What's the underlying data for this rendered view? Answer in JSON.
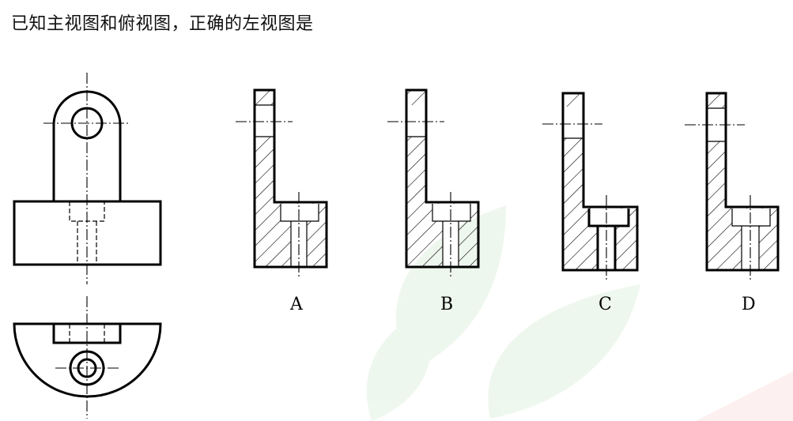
{
  "question": {
    "text": "已知主视图和俯视图，正确的左视图是"
  },
  "options": [
    {
      "label": "A"
    },
    {
      "label": "B"
    },
    {
      "label": "C"
    },
    {
      "label": "D"
    }
  ]
}
